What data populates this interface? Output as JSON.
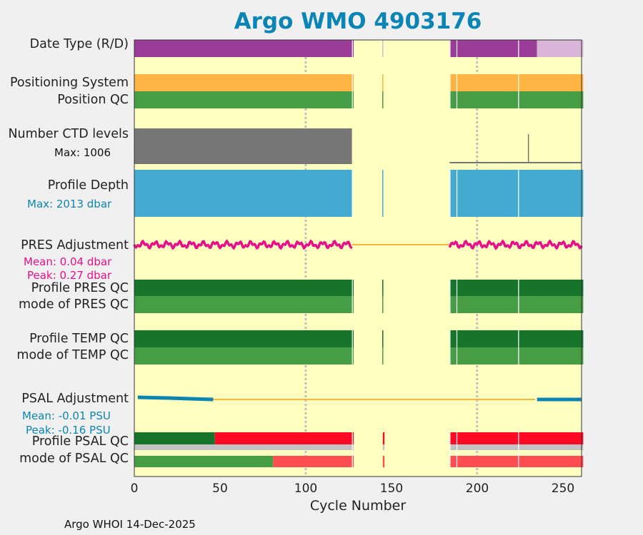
{
  "chart_data": {
    "type": "status-strip",
    "title": "Argo WMO 4903176",
    "xlabel": "Cycle Number",
    "xlim": [
      0,
      261
    ],
    "xticks": [
      "0",
      "50",
      "100",
      "150",
      "200",
      "250"
    ],
    "rows": [
      {
        "label": "Date Type (R/D)"
      },
      {
        "label": "Positioning System"
      },
      {
        "label": "Position QC"
      },
      {
        "label": "Number CTD levels",
        "note": "Max: 1006"
      },
      {
        "label": "Profile Depth",
        "note": "Max: 2013 dbar"
      },
      {
        "label": "PRES Adjustment",
        "note1": "Mean: 0.04 dbar",
        "note2": "Peak: 0.27 dbar"
      },
      {
        "label": "Profile PRES QC"
      },
      {
        "label": "mode of PRES QC"
      },
      {
        "label": "Profile TEMP QC"
      },
      {
        "label": "mode of TEMP QC"
      },
      {
        "label": "PSAL Adjustment",
        "note1": "Mean: -0.01 PSU",
        "note2": "Peak: -0.16 PSU"
      },
      {
        "label": "Profile PSAL QC"
      },
      {
        "label": "mode of PSAL QC"
      }
    ],
    "cycle_ranges": [
      [
        0,
        127
      ],
      [
        145,
        145
      ],
      [
        184,
        261
      ]
    ],
    "date_mode_changes": {
      "realtime_until": 234,
      "delayed_from": 235
    },
    "psal_profile_qc": [
      {
        "from": 0,
        "to": 46,
        "flag": "good"
      },
      {
        "from": 47,
        "to": 261,
        "flag": "bad"
      }
    ],
    "psal_mode_qc": [
      {
        "from": 0,
        "to": 80,
        "flag": "good"
      },
      {
        "from": 81,
        "to": 261,
        "flag": "bad"
      }
    ],
    "colors": {
      "background": "#ffffc0",
      "realtime": "#9a3c98",
      "delayed": "#d9b5d9",
      "gps": "#fdb443",
      "good": "#479d46",
      "good_dark": "#16742b",
      "ctd": "#767676",
      "depth": "#45aad0",
      "pres_adj": "#e60f8c",
      "psal_adj": "#0c86b0",
      "bad": "#ff0a25",
      "bad_light": "#ff4d52",
      "grey": "#c2c2c2"
    }
  },
  "footer": "Argo WHOI 14-Dec-2025"
}
